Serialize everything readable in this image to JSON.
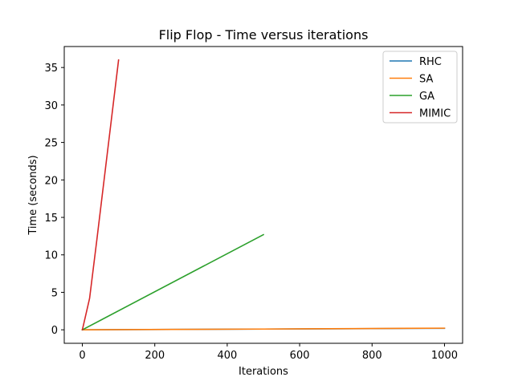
{
  "chart_data": {
    "type": "line",
    "title": "Flip Flop - Time versus iterations",
    "xlabel": "Iterations",
    "ylabel": "Time (seconds)",
    "xlim": [
      -50,
      1050
    ],
    "ylim": [
      -1.8,
      37.8
    ],
    "xticks": [
      0,
      200,
      400,
      600,
      800,
      1000
    ],
    "yticks": [
      0,
      5,
      10,
      15,
      20,
      25,
      30,
      35
    ],
    "grid": false,
    "legend_position": "top-right",
    "series": [
      {
        "name": "RHC",
        "color": "#1f77b4",
        "x": [
          0,
          250,
          500,
          750,
          1000
        ],
        "y": [
          0.0,
          0.05,
          0.1,
          0.15,
          0.2
        ]
      },
      {
        "name": "SA",
        "color": "#ff7f0e",
        "x": [
          0,
          250,
          500,
          750,
          1000
        ],
        "y": [
          0.0,
          0.05,
          0.1,
          0.16,
          0.22
        ]
      },
      {
        "name": "GA",
        "color": "#2ca02c",
        "x": [
          0,
          500
        ],
        "y": [
          0.0,
          12.7
        ]
      },
      {
        "name": "MIMIC",
        "color": "#d62728",
        "x": [
          0,
          20,
          40,
          60,
          80,
          100
        ],
        "y": [
          0.0,
          4.2,
          12.0,
          20.0,
          28.0,
          36.0
        ]
      }
    ]
  }
}
